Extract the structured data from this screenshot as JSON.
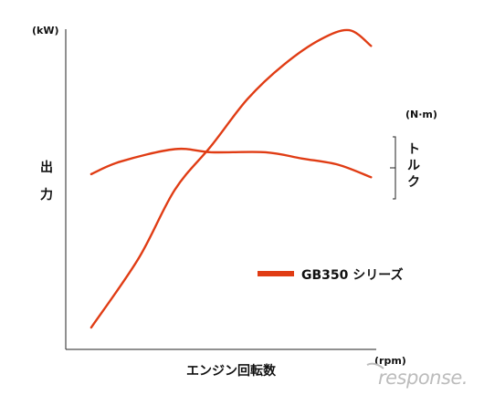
{
  "chart_data": {
    "type": "line",
    "xlabel": "エンジン回転数",
    "xunit": "(rpm)",
    "ylabel_left": [
      "出",
      "力"
    ],
    "yunit_left": "(kW)",
    "ylabel_right": [
      "ト",
      "ル",
      "ク"
    ],
    "yunit_right": "(N·m)",
    "grid": false,
    "legend": {
      "position": "bottom-right",
      "label": "GB350 シリーズ"
    },
    "x_range": [
      0,
      1
    ],
    "y_range": [
      0,
      1
    ],
    "series": [
      {
        "name": "GB350 シリーズ",
        "metric": "power",
        "color": "#e03c14",
        "points": [
          [
            0.07,
            0.07
          ],
          [
            0.2,
            0.29
          ],
          [
            0.3,
            0.51
          ],
          [
            0.4,
            0.65
          ],
          [
            0.5,
            0.8
          ],
          [
            0.6,
            0.91
          ],
          [
            0.7,
            0.99
          ],
          [
            0.78,
            1.02
          ],
          [
            0.84,
            0.97
          ]
        ]
      },
      {
        "name": "GB350 シリーズ",
        "metric": "torque",
        "color": "#e03c14",
        "points": [
          [
            0.07,
            0.56
          ],
          [
            0.15,
            0.6
          ],
          [
            0.3,
            0.64
          ],
          [
            0.4,
            0.63
          ],
          [
            0.55,
            0.63
          ],
          [
            0.65,
            0.61
          ],
          [
            0.75,
            0.59
          ],
          [
            0.84,
            0.55
          ]
        ]
      }
    ]
  },
  "watermark": "response."
}
